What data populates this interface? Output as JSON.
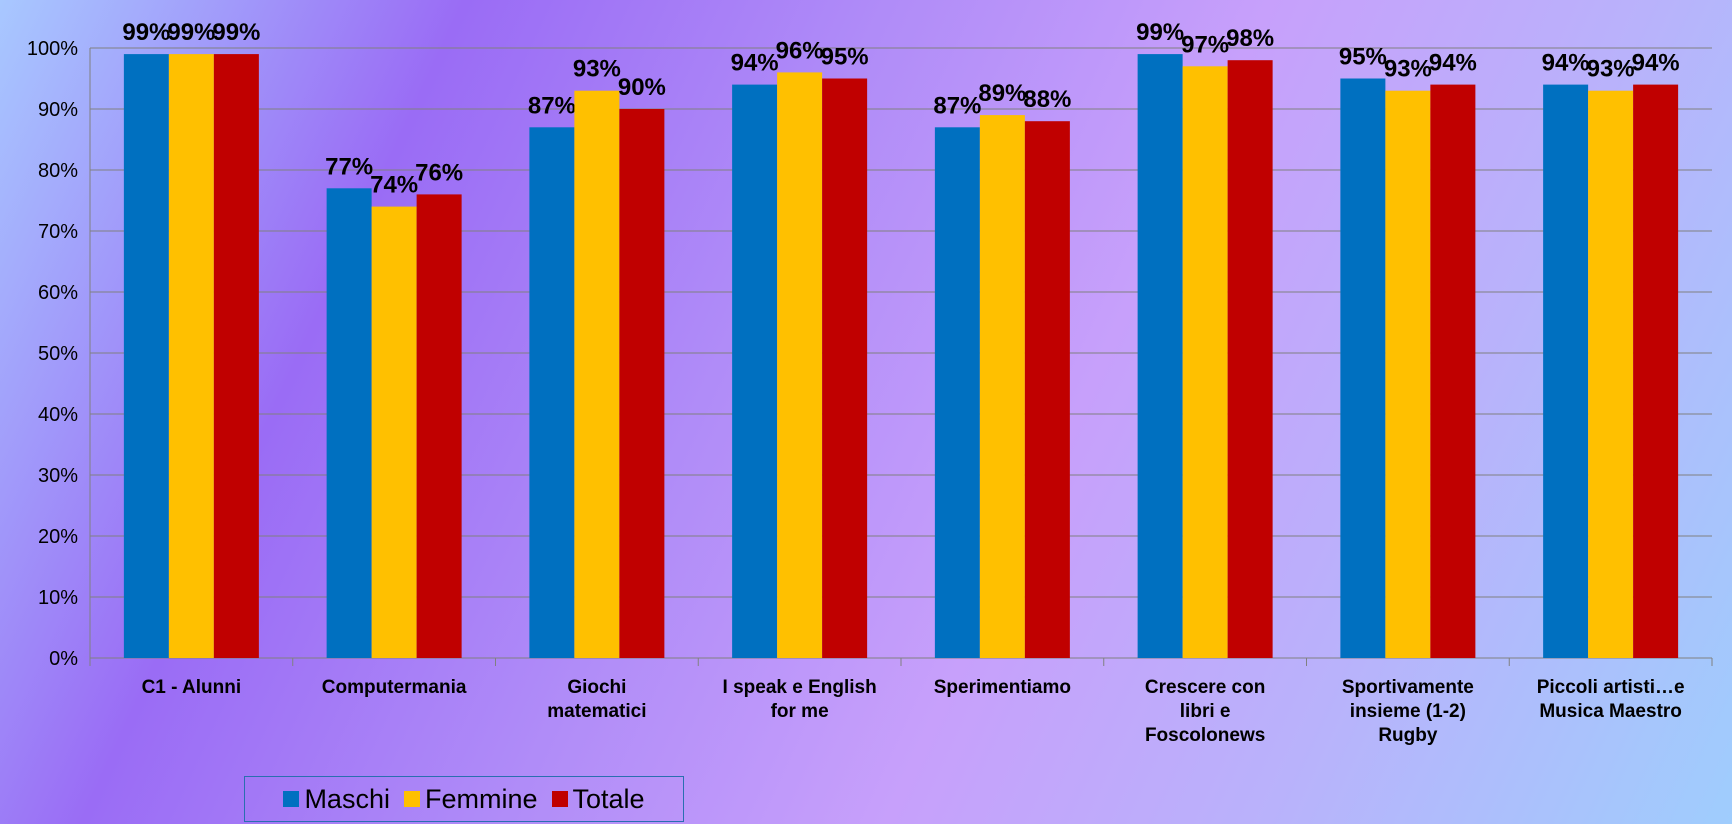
{
  "chart_data": {
    "type": "bar",
    "categories": [
      [
        "C1 - Alunni"
      ],
      [
        "Computermania"
      ],
      [
        "Giochi",
        "matematici"
      ],
      [
        "I speak e English",
        "for me"
      ],
      [
        "Sperimentiamo"
      ],
      [
        "Crescere con",
        "libri e",
        "Foscolonews"
      ],
      [
        "Sportivamente",
        "insieme (1-2)",
        "Rugby"
      ],
      [
        "Piccoli artisti…e",
        "Musica Maestro"
      ]
    ],
    "series": [
      {
        "name": "Maschi",
        "color": "#0070c0",
        "values": [
          99,
          77,
          87,
          94,
          87,
          99,
          95,
          94
        ],
        "labels": [
          "99%",
          "77%",
          "87%",
          "94%",
          "87%",
          "99%",
          "95%",
          "94%"
        ]
      },
      {
        "name": "Femmine",
        "color": "#ffc000",
        "values": [
          99,
          74,
          93,
          96,
          89,
          97,
          93,
          93
        ],
        "labels": [
          "99%",
          "74%",
          "93%",
          "96%",
          "89%",
          "97%",
          "93%",
          "93%"
        ]
      },
      {
        "name": "Totale",
        "color": "#c00000",
        "values": [
          99,
          76,
          90,
          95,
          88,
          98,
          94,
          94
        ],
        "labels": [
          "99%",
          "76%",
          "90%",
          "95%",
          "88%",
          "98%",
          "94%",
          "94%"
        ]
      }
    ],
    "ylim": [
      0,
      100
    ],
    "yticks": [
      0,
      10,
      20,
      30,
      40,
      50,
      60,
      70,
      80,
      90,
      100
    ],
    "ytick_labels": [
      "0%",
      "10%",
      "20%",
      "30%",
      "40%",
      "50%",
      "60%",
      "70%",
      "80%",
      "90%",
      "100%"
    ],
    "grid": true,
    "legend_position": "bottom-left"
  }
}
